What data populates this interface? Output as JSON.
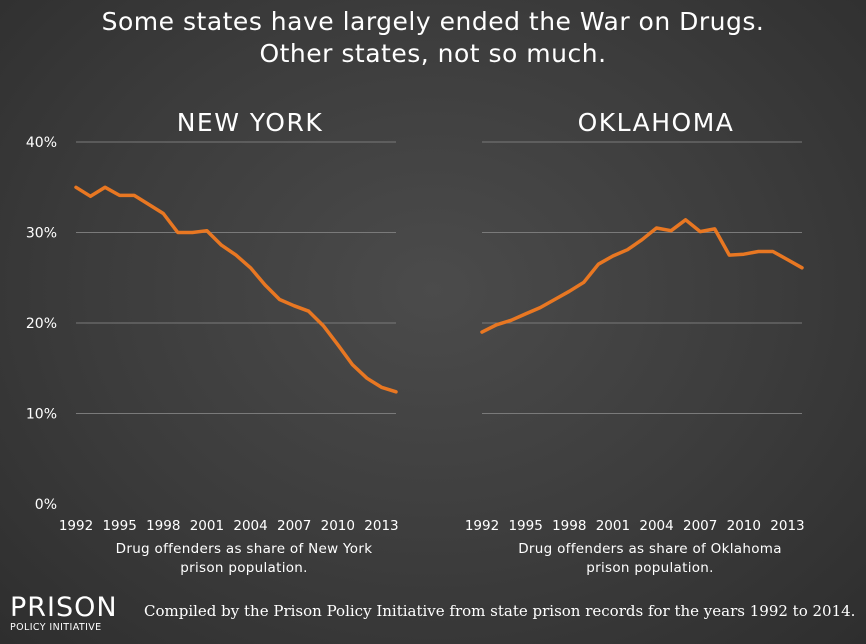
{
  "title_lines": [
    "Some states have largely ended the War on Drugs.",
    "Other states, not so much."
  ],
  "chart_data": [
    {
      "type": "line",
      "title": "NEW YORK",
      "caption_lines": [
        "Drug offenders as share of New York",
        "prison population."
      ],
      "x_ticks": [
        "1992",
        "1995",
        "1998",
        "2001",
        "2004",
        "2007",
        "2010",
        "2013"
      ],
      "y_ticks": [
        "40%",
        "30%",
        "20%",
        "10%",
        "0%"
      ],
      "ylim": [
        0,
        40
      ],
      "xlim": [
        1992,
        2014
      ],
      "grid": true,
      "line_color": "#e87722",
      "series": [
        {
          "x": [
            1992,
            1993,
            1994,
            1995,
            1996,
            1997,
            1998,
            1999,
            2000,
            2001,
            2002,
            2003,
            2004,
            2005,
            2006,
            2007,
            2008,
            2009,
            2010,
            2011,
            2012,
            2013,
            2014
          ],
          "values": [
            35.0,
            34.0,
            35.0,
            34.1,
            34.1,
            33.1,
            32.1,
            30.0,
            30.0,
            30.2,
            28.6,
            27.5,
            26.1,
            24.2,
            22.6,
            21.9,
            21.3,
            19.7,
            17.6,
            15.4,
            13.9,
            12.9,
            12.4
          ]
        }
      ]
    },
    {
      "type": "line",
      "title": "OKLAHOMA",
      "caption_lines": [
        "Drug offenders as share of Oklahoma",
        "prison population."
      ],
      "x_ticks": [
        "1992",
        "1995",
        "1998",
        "2001",
        "2004",
        "2007",
        "2010",
        "2013"
      ],
      "y_ticks": [
        "40%",
        "30%",
        "20%",
        "10%",
        "0%"
      ],
      "ylim": [
        0,
        40
      ],
      "xlim": [
        1992,
        2014
      ],
      "grid": true,
      "line_color": "#e87722",
      "series": [
        {
          "x": [
            1992,
            1993,
            1994,
            1995,
            1996,
            1997,
            1998,
            1999,
            2000,
            2001,
            2002,
            2003,
            2004,
            2005,
            2006,
            2007,
            2008,
            2009,
            2010,
            2011,
            2012,
            2013,
            2014
          ],
          "values": [
            19.0,
            19.8,
            20.3,
            21.0,
            21.7,
            22.6,
            23.5,
            24.5,
            26.5,
            27.4,
            28.1,
            29.2,
            30.5,
            30.2,
            31.4,
            30.1,
            30.4,
            27.5,
            27.6,
            27.9,
            27.9,
            27.0,
            26.1
          ]
        }
      ]
    }
  ],
  "brand": {
    "line1": "PRISON",
    "line2": "POLICY INITIATIVE"
  },
  "credit": "Compiled by the Prison Policy Initiative from state prison records for the years 1992 to 2014."
}
